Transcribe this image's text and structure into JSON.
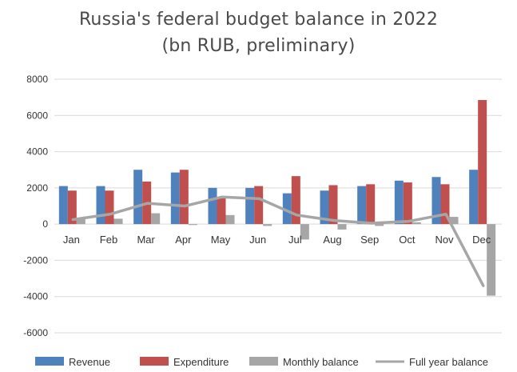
{
  "chart_data": {
    "type": "bar",
    "title": "Russia's federal budget balance in 2022",
    "subtitle": "(bn RUB, preliminary)",
    "xlabel": "",
    "ylabel": "",
    "ylim": [
      -6000,
      8000
    ],
    "y_ticks": [
      8000,
      6000,
      4000,
      2000,
      0,
      -2000,
      -4000,
      -6000
    ],
    "grid": true,
    "legend_position": "bottom",
    "categories": [
      "Jan",
      "Feb",
      "Mar",
      "Apr",
      "May",
      "Jun",
      "Jul",
      "Aug",
      "Sep",
      "Oct",
      "Nov",
      "Dec"
    ],
    "series": [
      {
        "name": "Revenue",
        "kind": "bar",
        "color": "#4f81bd",
        "values": [
          2100,
          2100,
          3000,
          2850,
          2000,
          2000,
          1700,
          1850,
          2100,
          2400,
          2600,
          3000
        ]
      },
      {
        "name": "Expenditure",
        "kind": "bar",
        "color": "#c0504d",
        "values": [
          1850,
          1850,
          2350,
          3000,
          1500,
          2100,
          2650,
          2150,
          2200,
          2300,
          2200,
          6850
        ]
      },
      {
        "name": "Monthly balance",
        "kind": "bar",
        "color": "#a6a6a6",
        "values": [
          300,
          300,
          600,
          -50,
          500,
          -100,
          -850,
          -300,
          -100,
          100,
          400,
          -3950
        ]
      },
      {
        "name": "Full year balance",
        "kind": "line",
        "color": "#a6a6a6",
        "values": [
          250,
          550,
          1150,
          1000,
          1500,
          1400,
          500,
          200,
          50,
          150,
          550,
          -3400
        ]
      }
    ]
  }
}
